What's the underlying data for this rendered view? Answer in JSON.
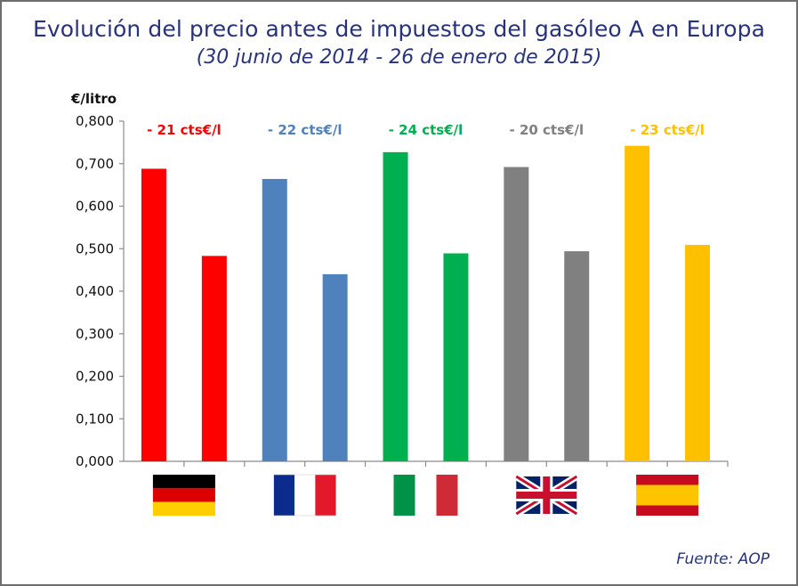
{
  "chart_data": {
    "type": "bar",
    "title": "Evolución del precio antes de impuestos del gasóleo A en Europa",
    "subtitle": "(30 junio de 2014 - 26 de enero de 2015)",
    "ylabel": "€/litro",
    "ylim": [
      0,
      0.8
    ],
    "yticks": [
      "0,000",
      "0,100",
      "0,200",
      "0,300",
      "0,400",
      "0,500",
      "0,600",
      "0,700",
      "0,800"
    ],
    "source": "Fuente: AOP",
    "series_names": [
      "30 junio de 2014",
      "26 de enero de 2015"
    ],
    "groups": [
      {
        "country": "Alemania",
        "flag": "germany-flag",
        "color": "#ff0000",
        "values": [
          0.688,
          0.483
        ],
        "change_label": "- 21 cts€/l"
      },
      {
        "country": "Francia",
        "flag": "france-flag",
        "color": "#4f81bd",
        "values": [
          0.664,
          0.44
        ],
        "change_label": "- 22 cts€/l"
      },
      {
        "country": "Italia",
        "flag": "italy-flag",
        "color": "#00b050",
        "values": [
          0.727,
          0.489
        ],
        "change_label": "- 24 cts€/l"
      },
      {
        "country": "Reino Unido",
        "flag": "uk-flag",
        "color": "#808080",
        "values": [
          0.692,
          0.494
        ],
        "change_label": "- 20 cts€/l"
      },
      {
        "country": "España",
        "flag": "spain-flag",
        "color": "#ffc000",
        "values": [
          0.742,
          0.509
        ],
        "change_label": "- 23 cts€/l"
      }
    ]
  }
}
